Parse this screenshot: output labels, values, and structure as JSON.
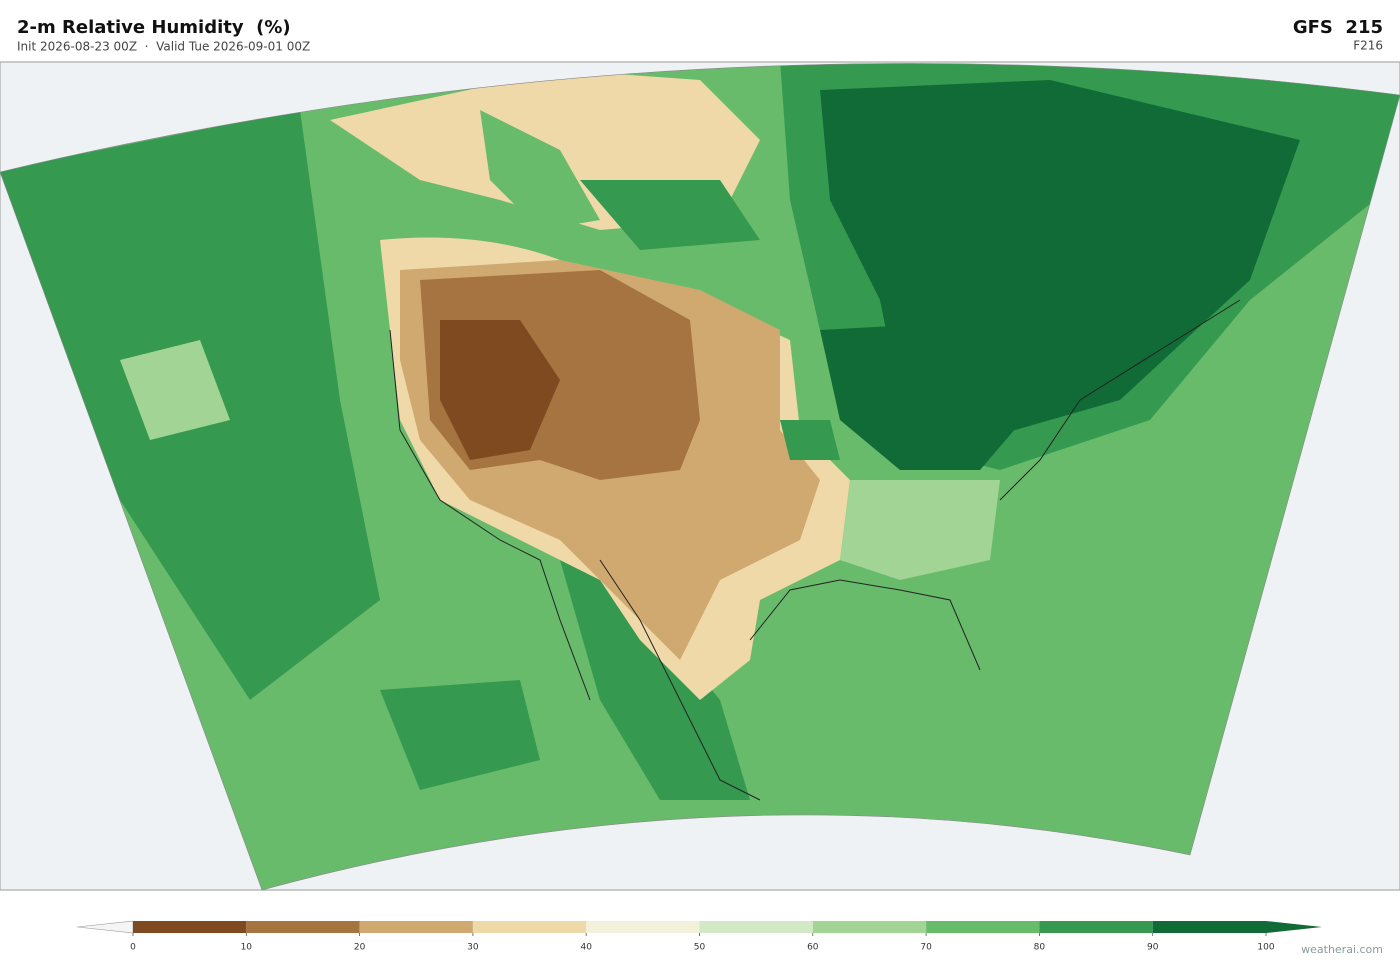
{
  "header": {
    "title": "2-m Relative Humidity  (%)",
    "subtitle": "Init 2026-08-23 00Z  ·  Valid Tue 2026-09-01 00Z",
    "model": "GFS  215",
    "forecast": "F216"
  },
  "colorbar": {
    "ticks": [
      0,
      10,
      20,
      30,
      40,
      50,
      60,
      70,
      80,
      90,
      100
    ],
    "colors": [
      "#7f4a1f",
      "#a67440",
      "#d0a970",
      "#efd9a8",
      "#f3f1dc",
      "#d2e9c6",
      "#a2d595",
      "#69bb6c",
      "#359a50",
      "#116b37"
    ]
  },
  "footer": {
    "credit": "weatherai.com"
  }
}
